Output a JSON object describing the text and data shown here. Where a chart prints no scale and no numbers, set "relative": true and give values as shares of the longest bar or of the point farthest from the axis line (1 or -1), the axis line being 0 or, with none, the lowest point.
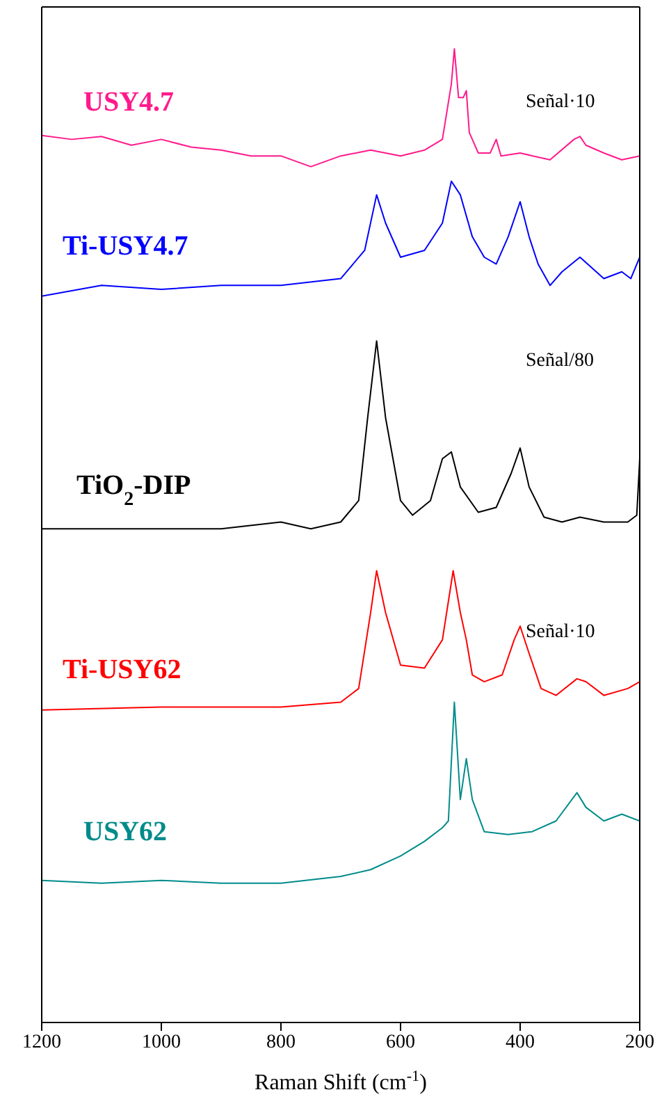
{
  "chart_data": {
    "type": "line",
    "relative": true,
    "xlabel": "Raman Shift (cm$^{-1}$)",
    "xlim": [
      1200,
      200
    ],
    "xticks": [
      1200,
      1000,
      800,
      600,
      400,
      200
    ],
    "series": [
      {
        "name": "USY4.7",
        "color": "#ff1a8c",
        "x": [
          1200,
          1150,
          1100,
          1050,
          1000,
          950,
          900,
          850,
          800,
          750,
          700,
          650,
          600,
          560,
          530,
          515,
          510,
          503,
          495,
          490,
          485,
          470,
          450,
          440,
          432,
          400,
          350,
          310,
          300,
          290,
          260,
          230,
          200
        ],
        "values": [
          0.911,
          0.907,
          0.91,
          0.901,
          0.907,
          0.899,
          0.896,
          0.89,
          0.89,
          0.879,
          0.89,
          0.896,
          0.89,
          0.896,
          0.907,
          0.964,
          1.0,
          0.95,
          0.95,
          0.957,
          0.914,
          0.893,
          0.893,
          0.907,
          0.89,
          0.893,
          0.886,
          0.907,
          0.91,
          0.901,
          0.893,
          0.886,
          0.89
        ]
      },
      {
        "name": "Ti-USY4.7",
        "color": "#0000ff",
        "x": [
          1200,
          1100,
          1000,
          900,
          800,
          700,
          660,
          640,
          625,
          600,
          560,
          530,
          515,
          500,
          480,
          460,
          440,
          420,
          400,
          385,
          370,
          350,
          330,
          300,
          260,
          230,
          215,
          200
        ],
        "values": [
          0.746,
          0.757,
          0.753,
          0.757,
          0.757,
          0.764,
          0.793,
          0.85,
          0.821,
          0.786,
          0.793,
          0.821,
          0.864,
          0.85,
          0.807,
          0.786,
          0.779,
          0.807,
          0.843,
          0.807,
          0.779,
          0.757,
          0.771,
          0.786,
          0.764,
          0.771,
          0.764,
          0.786
        ]
      },
      {
        "name": "TiO$_{2}$-DIP",
        "color": "#000000",
        "x": [
          1200,
          900,
          800,
          750,
          700,
          670,
          655,
          640,
          625,
          600,
          580,
          550,
          530,
          515,
          500,
          470,
          440,
          415,
          400,
          385,
          360,
          330,
          300,
          260,
          220,
          205,
          200
        ],
        "values": [
          0.507,
          0.507,
          0.514,
          0.507,
          0.514,
          0.536,
          0.621,
          0.7,
          0.621,
          0.536,
          0.521,
          0.536,
          0.579,
          0.586,
          0.55,
          0.524,
          0.529,
          0.564,
          0.59,
          0.55,
          0.519,
          0.514,
          0.519,
          0.514,
          0.514,
          0.521,
          0.579
        ]
      },
      {
        "name": "Ti-USY62",
        "color": "#ff0000",
        "x": [
          1200,
          1000,
          800,
          700,
          670,
          650,
          640,
          625,
          600,
          560,
          530,
          512,
          500,
          490,
          480,
          460,
          430,
          410,
          400,
          385,
          365,
          340,
          305,
          290,
          260,
          220,
          200
        ],
        "values": [
          0.321,
          0.324,
          0.324,
          0.329,
          0.343,
          0.421,
          0.464,
          0.421,
          0.367,
          0.364,
          0.393,
          0.464,
          0.421,
          0.393,
          0.357,
          0.35,
          0.357,
          0.393,
          0.407,
          0.379,
          0.343,
          0.336,
          0.353,
          0.35,
          0.336,
          0.343,
          0.35
        ]
      },
      {
        "name": "USY62",
        "color": "#008b8b",
        "x": [
          1200,
          1100,
          1000,
          900,
          800,
          700,
          650,
          600,
          560,
          530,
          520,
          510,
          500,
          490,
          480,
          460,
          420,
          380,
          340,
          305,
          290,
          260,
          230,
          200
        ],
        "values": [
          0.146,
          0.143,
          0.146,
          0.143,
          0.143,
          0.15,
          0.157,
          0.171,
          0.186,
          0.2,
          0.207,
          0.329,
          0.229,
          0.271,
          0.229,
          0.196,
          0.193,
          0.196,
          0.207,
          0.236,
          0.221,
          0.207,
          0.214,
          0.207
        ]
      }
    ],
    "annotations": [
      "Señal·10",
      "Señal/80",
      "Señal·10"
    ]
  }
}
